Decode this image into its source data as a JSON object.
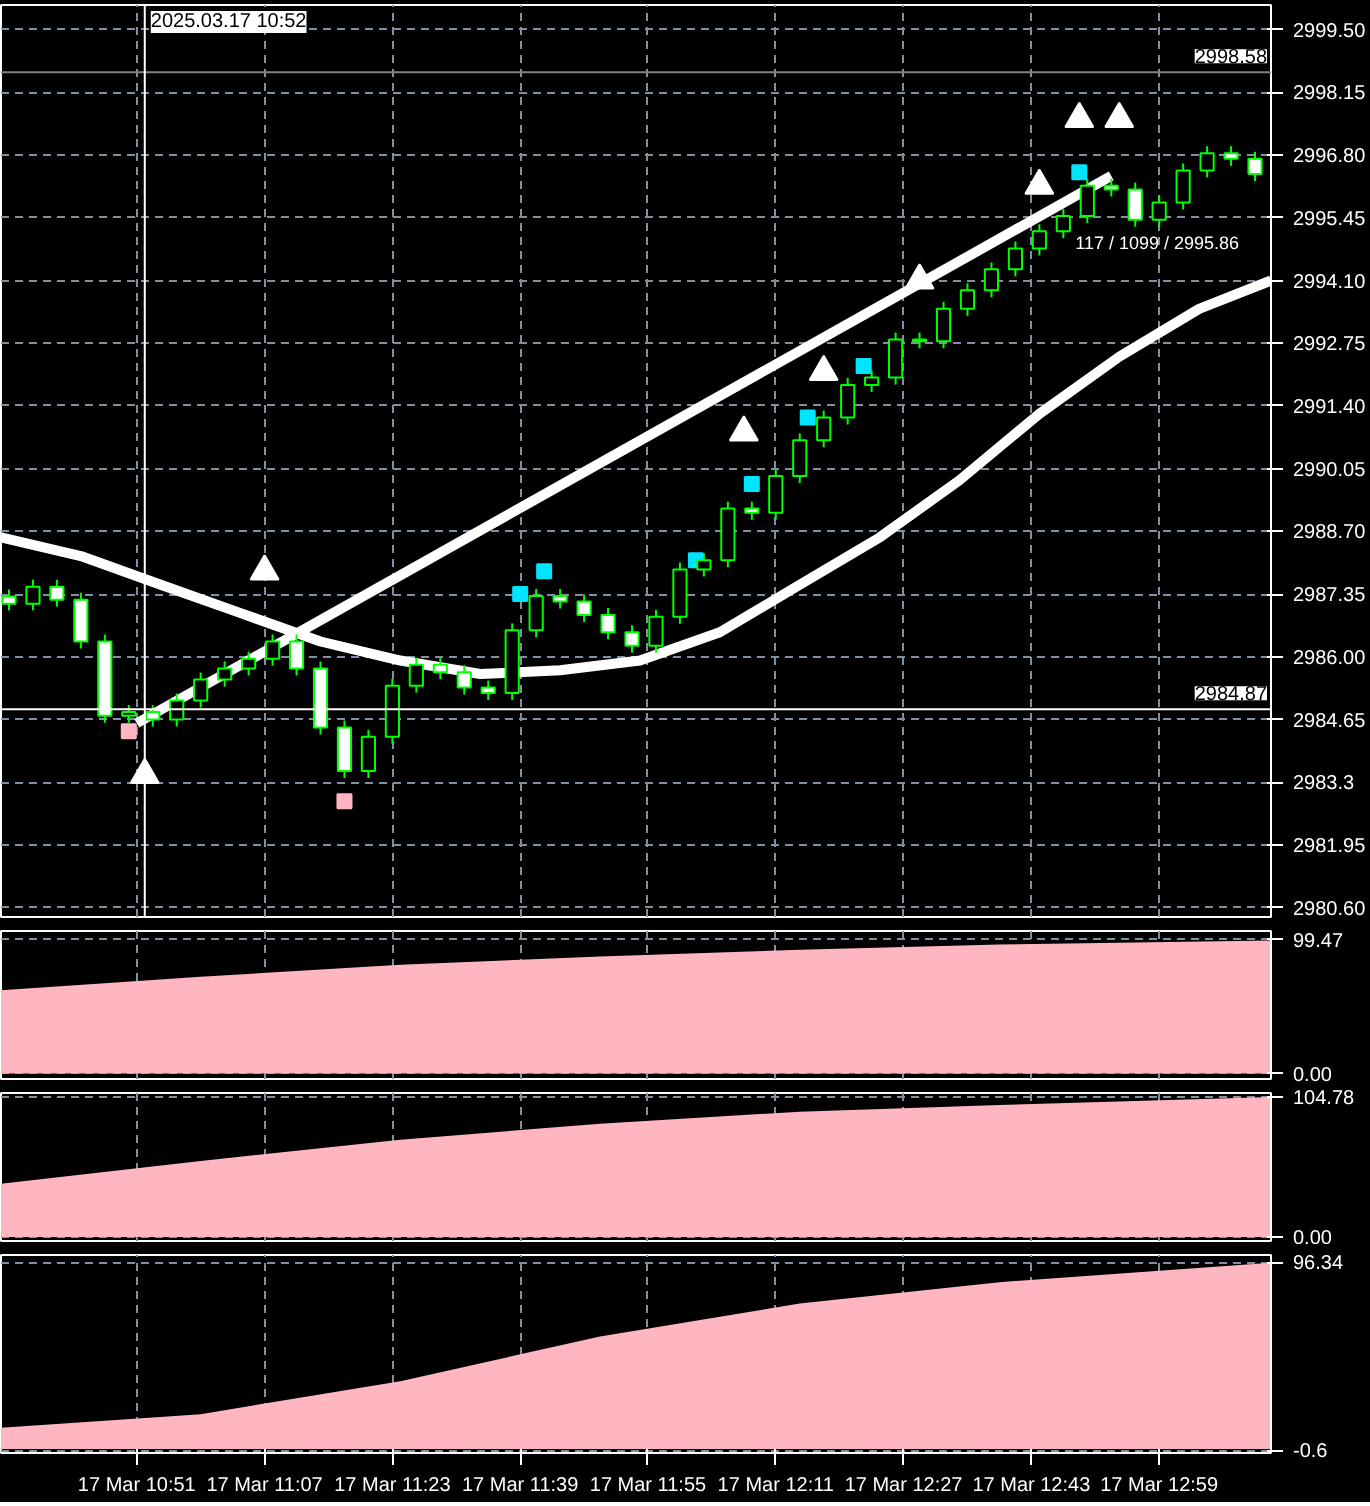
{
  "chart_data": [
    {
      "type": "candlestick",
      "color": "#00ff00",
      "tick_labels": "y",
      "grid": true,
      "x": [
        "2025-03-17T10:35",
        "2025-03-17T10:38",
        "2025-03-17T10:41",
        "2025-03-17T10:44",
        "2025-03-17T10:47",
        "2025-03-17T10:50",
        "2025-03-17T10:53",
        "2025-03-17T10:56",
        "2025-03-17T10:59",
        "2025-03-17T11:02",
        "2025-03-17T11:05",
        "2025-03-17T11:08",
        "2025-03-17T11:11",
        "2025-03-17T11:14",
        "2025-03-17T11:17",
        "2025-03-17T11:20",
        "2025-03-17T11:23",
        "2025-03-17T11:26",
        "2025-03-17T11:29",
        "2025-03-17T11:32",
        "2025-03-17T11:35",
        "2025-03-17T11:38",
        "2025-03-17T11:41",
        "2025-03-17T11:44",
        "2025-03-17T11:47",
        "2025-03-17T11:50",
        "2025-03-17T11:53",
        "2025-03-17T11:56",
        "2025-03-17T11:59",
        "2025-03-17T12:02",
        "2025-03-17T12:05",
        "2025-03-17T12:08",
        "2025-03-17T12:11",
        "2025-03-17T12:14",
        "2025-03-17T12:17",
        "2025-03-17T12:20",
        "2025-03-17T12:23",
        "2025-03-17T12:26",
        "2025-03-17T12:29",
        "2025-03-17T12:32",
        "2025-03-17T12:35",
        "2025-03-17T12:38",
        "2025-03-17T12:41",
        "2025-03-17T12:44",
        "2025-03-17T12:47",
        "2025-03-17T12:50",
        "2025-03-17T12:53",
        "2025-03-17T12:56",
        "2025-03-17T12:59",
        "2025-03-17T13:02",
        "2025-03-17T13:05",
        "2025-03-17T13:08",
        "2025-03-17T13:11"
      ],
      "ohlc": [
        [
          2987.3,
          2987.45,
          2987.0,
          2987.14
        ],
        [
          2987.14,
          2987.66,
          2987.0,
          2987.51
        ],
        [
          2987.51,
          2987.66,
          2987.08,
          2987.23
        ],
        [
          2987.23,
          2987.38,
          2986.18,
          2986.33
        ],
        [
          2986.33,
          2986.48,
          2984.58,
          2984.73
        ],
        [
          2984.73,
          2984.96,
          2984.58,
          2984.81
        ],
        [
          2984.81,
          2984.96,
          2984.5,
          2984.65
        ],
        [
          2984.65,
          2985.21,
          2984.5,
          2985.06
        ],
        [
          2985.06,
          2985.66,
          2984.91,
          2985.51
        ],
        [
          2985.51,
          2985.9,
          2985.36,
          2985.75
        ],
        [
          2985.75,
          2986.11,
          2985.6,
          2985.96
        ],
        [
          2985.96,
          2986.48,
          2985.81,
          2986.33
        ],
        [
          2986.33,
          2986.48,
          2985.6,
          2985.75
        ],
        [
          2985.75,
          2985.9,
          2984.33,
          2984.48
        ],
        [
          2984.48,
          2984.63,
          2983.39,
          2983.54
        ],
        [
          2983.54,
          2984.43,
          2983.39,
          2984.28
        ],
        [
          2984.28,
          2985.53,
          2984.13,
          2985.38
        ],
        [
          2985.38,
          2985.98,
          2985.23,
          2985.83
        ],
        [
          2985.83,
          2985.98,
          2985.52,
          2985.67
        ],
        [
          2985.67,
          2985.82,
          2985.19,
          2985.34
        ],
        [
          2985.34,
          2985.49,
          2985.07,
          2985.22
        ],
        [
          2985.22,
          2986.72,
          2985.07,
          2986.57
        ],
        [
          2986.57,
          2987.46,
          2986.42,
          2987.31
        ],
        [
          2987.31,
          2987.46,
          2987.04,
          2987.19
        ],
        [
          2987.19,
          2987.34,
          2986.75,
          2986.9
        ],
        [
          2986.9,
          2987.05,
          2986.38,
          2986.53
        ],
        [
          2986.53,
          2986.68,
          2986.09,
          2986.24
        ],
        [
          2986.24,
          2987.01,
          2986.09,
          2986.86
        ],
        [
          2986.86,
          2988.03,
          2986.71,
          2987.88
        ],
        [
          2987.88,
          2988.23,
          2987.73,
          2988.08
        ],
        [
          2988.08,
          2989.34,
          2987.93,
          2989.19
        ],
        [
          2989.19,
          2989.34,
          2988.95,
          2989.1
        ],
        [
          2989.1,
          2990.04,
          2988.95,
          2989.89
        ],
        [
          2989.89,
          2990.81,
          2989.74,
          2990.66
        ],
        [
          2990.66,
          2991.3,
          2990.51,
          2991.15
        ],
        [
          2991.15,
          2992.0,
          2991.0,
          2991.85
        ],
        [
          2991.85,
          2992.16,
          2991.7,
          2992.01
        ],
        [
          2992.01,
          2992.98,
          2991.86,
          2992.83
        ],
        [
          2992.83,
          2992.98,
          2992.64,
          2992.79
        ],
        [
          2992.79,
          2993.64,
          2992.64,
          2993.49
        ],
        [
          2993.49,
          2994.04,
          2993.34,
          2993.89
        ],
        [
          2993.89,
          2994.49,
          2993.74,
          2994.34
        ],
        [
          2994.34,
          2994.94,
          2994.19,
          2994.79
        ],
        [
          2994.79,
          2995.31,
          2994.64,
          2995.16
        ],
        [
          2995.16,
          2995.64,
          2995.01,
          2995.49
        ],
        [
          2995.49,
          2996.29,
          2995.34,
          2996.14
        ],
        [
          2996.14,
          2996.29,
          2995.91,
          2996.06
        ],
        [
          2996.06,
          2996.21,
          2995.26,
          2995.41
        ],
        [
          2995.41,
          2995.93,
          2995.26,
          2995.78
        ],
        [
          2995.78,
          2996.62,
          2995.63,
          2996.47
        ],
        [
          2996.47,
          2996.99,
          2996.32,
          2996.84
        ],
        [
          2996.84,
          2996.99,
          2996.57,
          2996.72
        ],
        [
          2996.72,
          2996.87,
          2996.24,
          2996.39
        ]
      ],
      "series": [
        {
          "type": "line",
          "color": "#ffffff",
          "x": [
            "2025-03-17T10:34",
            "2025-03-17T10:44",
            "2025-03-17T10:54",
            "2025-03-17T11:04",
            "2025-03-17T11:14",
            "2025-03-17T11:24",
            "2025-03-17T11:34",
            "2025-03-17T11:44",
            "2025-03-17T11:54",
            "2025-03-17T12:04",
            "2025-03-17T12:14",
            "2025-03-17T12:24",
            "2025-03-17T12:34",
            "2025-03-17T12:44",
            "2025-03-17T12:54",
            "2025-03-17T13:04",
            "2025-03-17T13:13"
          ],
          "values": [
            2988.57,
            2988.17,
            2987.55,
            2986.94,
            2986.33,
            2985.92,
            2985.63,
            2985.71,
            2985.92,
            2986.53,
            2987.55,
            2988.57,
            2989.8,
            2991.23,
            2992.46,
            2993.49,
            2994.1
          ]
        },
        {
          "type": "line",
          "color": "#ffffff",
          "x": [
            "2025-03-17T10:51",
            "2025-03-17T12:53"
          ],
          "values": [
            2984.57,
            2996.35
          ]
        },
        {
          "type": "scatter",
          "marker": "triangle",
          "color": "#ffffff",
          "x": [
            "2025-03-17T11:07",
            "2025-03-17T12:07",
            "2025-03-17T12:17",
            "2025-03-17T12:29",
            "2025-03-17T12:44",
            "2025-03-17T12:49",
            "2025-03-17T12:54"
          ],
          "values": [
            2987.84,
            2990.83,
            2992.13,
            2994.1,
            2996.14,
            2997.58,
            2997.58
          ]
        },
        {
          "type": "scatter",
          "marker": "triangle",
          "color": "#ffffff",
          "x": [
            "2025-03-17T10:52"
          ],
          "values": [
            2983.46
          ]
        },
        {
          "type": "scatter",
          "marker": "square",
          "color": "#00e5ff",
          "x": [
            "2025-03-17T11:39",
            "2025-03-17T11:42",
            "2025-03-17T12:01",
            "2025-03-17T12:08",
            "2025-03-17T12:15",
            "2025-03-17T12:22",
            "2025-03-17T12:49"
          ],
          "values": [
            2987.35,
            2987.84,
            2988.08,
            2989.72,
            2991.15,
            2992.26,
            2996.43
          ]
        },
        {
          "type": "scatter",
          "marker": "square",
          "color": "#ffb6c1",
          "x": [
            "2025-03-17T10:50",
            "2025-03-17T11:17"
          ],
          "values": [
            2984.4,
            2982.89
          ]
        }
      ],
      "xlim": [
        "2025-03-17T10:34",
        "2025-03-17T13:13"
      ],
      "ylim": [
        2980.4,
        3000.03
      ],
      "yticks": [
        {
          "value": 2980.6,
          "label": "2980.60"
        },
        2981.95,
        2983.3,
        {
          "value": 2984.65,
          "label": "2984.65"
        },
        {
          "value": 2986,
          "label": "2986.00"
        },
        2987.35,
        {
          "value": 2988.7,
          "label": "2988.70"
        },
        2990.05,
        {
          "value": 2991.4,
          "label": "2991.40"
        },
        2992.75,
        {
          "value": 2994.1,
          "label": "2994.10"
        },
        2995.45,
        {
          "value": 2996.8,
          "label": "2996.80"
        },
        2998.15,
        {
          "value": 2999.5,
          "label": "2999.50"
        }
      ],
      "xticks": [
        {
          "value": "2025-03-17T10:51",
          "label": null
        },
        {
          "value": "2025-03-17T11:07",
          "label": null
        },
        {
          "value": "2025-03-17T11:23",
          "label": null
        },
        {
          "value": "2025-03-17T11:39",
          "label": null
        },
        {
          "value": "2025-03-17T11:55",
          "label": null
        },
        {
          "value": "2025-03-17T12:11",
          "label": null
        },
        {
          "value": "2025-03-17T12:27",
          "label": null
        },
        {
          "value": "2025-03-17T12:43",
          "label": null
        },
        {
          "value": "2025-03-17T12:59",
          "label": null
        }
      ],
      "ref_lines": [
        {
          "axis": "y",
          "value": 2998.58,
          "label": "2998.58",
          "color": "#808080"
        },
        {
          "axis": "y",
          "value": 2984.87,
          "label": "2984.87",
          "color": "#ffffff"
        },
        {
          "axis": "x",
          "value": "2025-03-17T10:52",
          "label": "2025.03.17 10:52",
          "color": "#ffffff"
        }
      ],
      "annotations": [
        {
          "text": "117 / 1099 / 2995.86",
          "x": "2025-03-17T12:49",
          "y": 2995.86
        }
      ]
    },
    {
      "type": "area",
      "color": "#ffb6c1",
      "tick_labels": "y",
      "grid": true,
      "x": [
        "2025-03-17T10:34",
        "2025-03-17T10:59",
        "2025-03-17T11:24",
        "2025-03-17T11:49",
        "2025-03-17T12:14",
        "2025-03-17T12:39",
        "2025-03-17T13:13"
      ],
      "values": [
        62,
        72,
        81,
        87,
        92,
        96,
        99
      ],
      "xlim": [
        "2025-03-17T10:34",
        "2025-03-17T13:13"
      ],
      "ylim": [
        -4,
        106
      ],
      "yticks": [
        {
          "value": 0,
          "label": "0.00"
        },
        99.47
      ],
      "xticks": [
        {
          "value": "2025-03-17T10:51",
          "label": null
        },
        {
          "value": "2025-03-17T11:07",
          "label": null
        },
        {
          "value": "2025-03-17T11:23",
          "label": null
        },
        {
          "value": "2025-03-17T11:39",
          "label": null
        },
        {
          "value": "2025-03-17T11:55",
          "label": null
        },
        {
          "value": "2025-03-17T12:11",
          "label": null
        },
        {
          "value": "2025-03-17T12:27",
          "label": null
        },
        {
          "value": "2025-03-17T12:43",
          "label": null
        },
        {
          "value": "2025-03-17T12:59",
          "label": null
        }
      ]
    },
    {
      "type": "area",
      "color": "#ffb6c1",
      "tick_labels": "y",
      "grid": true,
      "x": [
        "2025-03-17T10:34",
        "2025-03-17T10:59",
        "2025-03-17T11:24",
        "2025-03-17T11:49",
        "2025-03-17T12:14",
        "2025-03-17T12:39",
        "2025-03-17T13:13"
      ],
      "values": [
        40,
        57,
        73,
        85,
        94,
        99,
        105
      ],
      "xlim": [
        "2025-03-17T10:34",
        "2025-03-17T13:13"
      ],
      "ylim": [
        -3,
        108
      ],
      "yticks": [
        {
          "value": 0,
          "label": "0.00"
        },
        104.78
      ],
      "xticks": [
        {
          "value": "2025-03-17T10:51",
          "label": null
        },
        {
          "value": "2025-03-17T11:07",
          "label": null
        },
        {
          "value": "2025-03-17T11:23",
          "label": null
        },
        {
          "value": "2025-03-17T11:39",
          "label": null
        },
        {
          "value": "2025-03-17T11:55",
          "label": null
        },
        {
          "value": "2025-03-17T12:11",
          "label": null
        },
        {
          "value": "2025-03-17T12:27",
          "label": null
        },
        {
          "value": "2025-03-17T12:43",
          "label": null
        },
        {
          "value": "2025-03-17T12:59",
          "label": null
        }
      ]
    },
    {
      "type": "area",
      "color": "#ffb6c1",
      "grid": true,
      "x": [
        "2025-03-17T10:34",
        "2025-03-17T10:59",
        "2025-03-17T11:24",
        "2025-03-17T11:49",
        "2025-03-17T12:14",
        "2025-03-17T12:39",
        "2025-03-17T13:13"
      ],
      "values": [
        11,
        18,
        35,
        58,
        75,
        86,
        96
      ],
      "xlim": [
        "2025-03-17T10:34",
        "2025-03-17T13:13"
      ],
      "ylim": [
        -2,
        100
      ],
      "yticks": [
        {
          "value": -0.6,
          "label": "-0.6"
        },
        96.34
      ],
      "xticks": [
        {
          "value": "2025-03-17T10:51",
          "label": "17 Mar 10:51"
        },
        {
          "value": "2025-03-17T11:07",
          "label": "17 Mar 11:07"
        },
        {
          "value": "2025-03-17T11:23",
          "label": "17 Mar 11:23"
        },
        {
          "value": "2025-03-17T11:39",
          "label": "17 Mar 11:39"
        },
        {
          "value": "2025-03-17T11:55",
          "label": "17 Mar 11:55"
        },
        {
          "value": "2025-03-17T12:11",
          "label": "17 Mar 12:11"
        },
        {
          "value": "2025-03-17T12:27",
          "label": "17 Mar 12:27"
        },
        {
          "value": "2025-03-17T12:43",
          "label": "17 Mar 12:43"
        },
        {
          "value": "2025-03-17T12:59",
          "label": "17 Mar 12:59"
        }
      ]
    }
  ]
}
